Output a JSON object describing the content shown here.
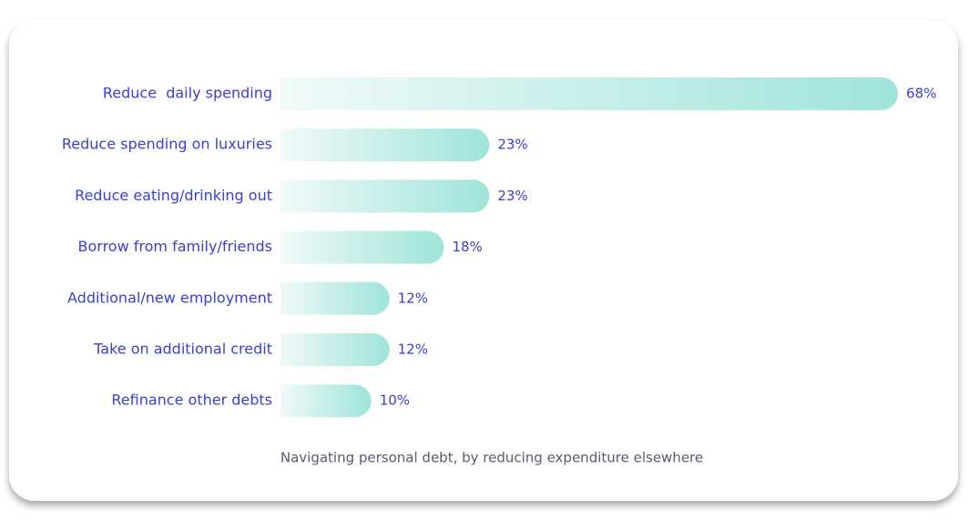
{
  "chart_data": {
    "type": "bar",
    "orientation": "horizontal",
    "caption": "Navigating personal debt, by reducing expenditure elsewhere",
    "categories": [
      "Reduce  daily spending",
      "Reduce spending on luxuries",
      "Reduce eating/drinking out",
      "Borrow from family/friends",
      "Additional/new employment",
      "Take on additional credit",
      "Refinance other debts"
    ],
    "values": [
      68,
      23,
      23,
      18,
      12,
      12,
      10
    ],
    "value_labels": [
      "68%",
      "23%",
      "23%",
      "18%",
      "12%",
      "12%",
      "10%"
    ],
    "color": "#9ee4da"
  }
}
